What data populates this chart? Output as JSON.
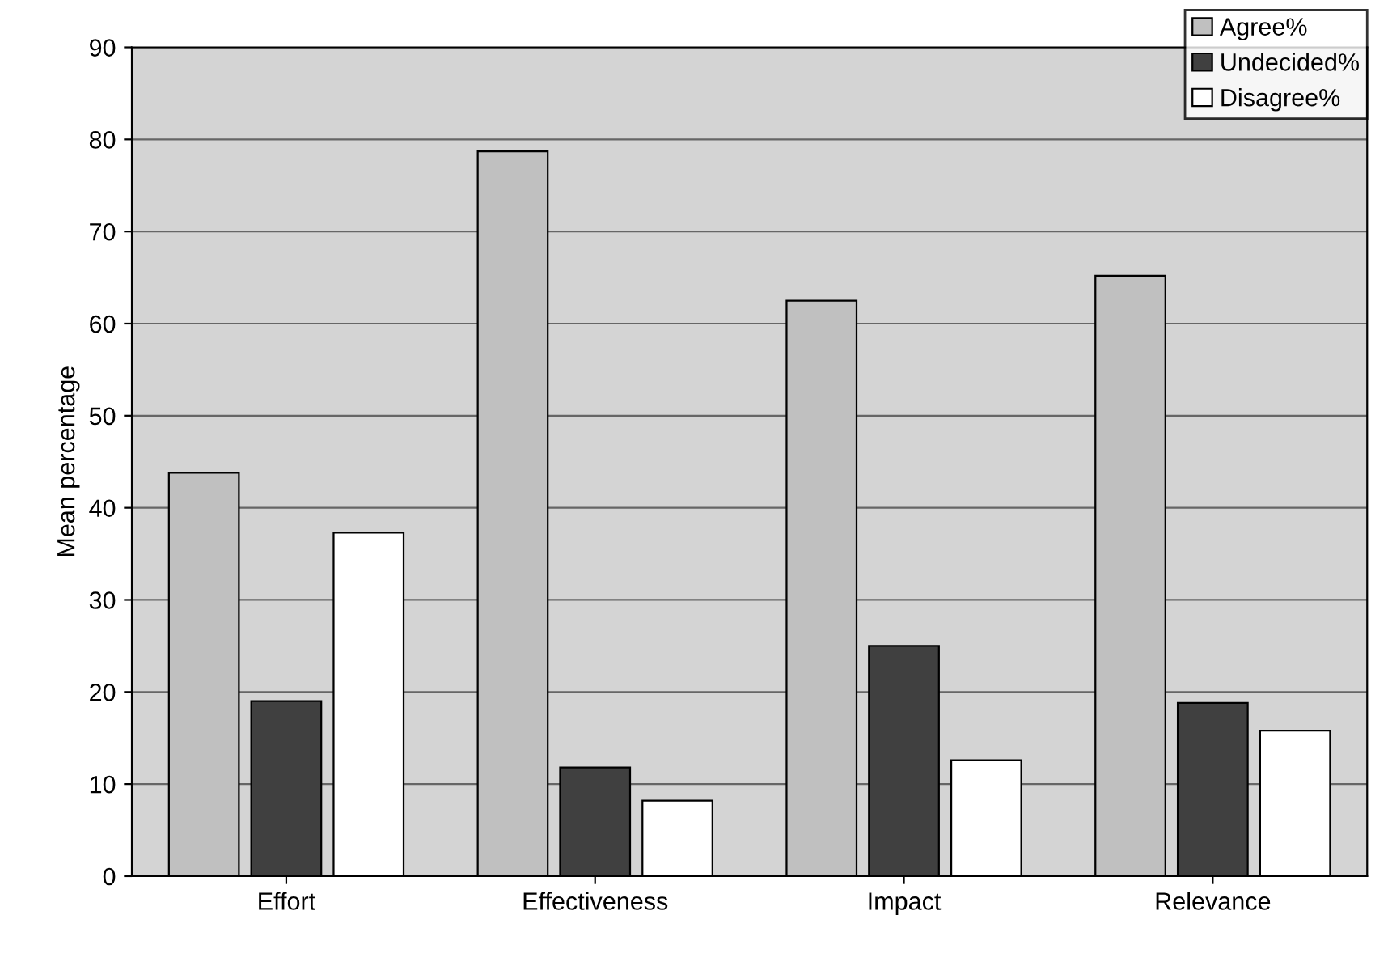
{
  "chart_data": {
    "type": "bar",
    "ylabel": "Mean percentage",
    "categories": [
      "Effort",
      "Effectiveness",
      "Impact",
      "Relevance"
    ],
    "series": [
      {
        "name": "Agree%",
        "color": "#c0c0c0",
        "values": [
          43.8,
          78.7,
          62.5,
          65.2
        ]
      },
      {
        "name": "Undecided%",
        "color": "#404040",
        "values": [
          19,
          11.8,
          25,
          18.8
        ]
      },
      {
        "name": "Disagree%",
        "color": "#ffffff",
        "values": [
          37.3,
          8.2,
          12.6,
          15.8
        ]
      }
    ],
    "ylim": [
      0,
      90
    ],
    "yticks": [
      0,
      10,
      20,
      30,
      40,
      50,
      60,
      70,
      80,
      90
    ],
    "grid": "y",
    "legend": "top right"
  }
}
